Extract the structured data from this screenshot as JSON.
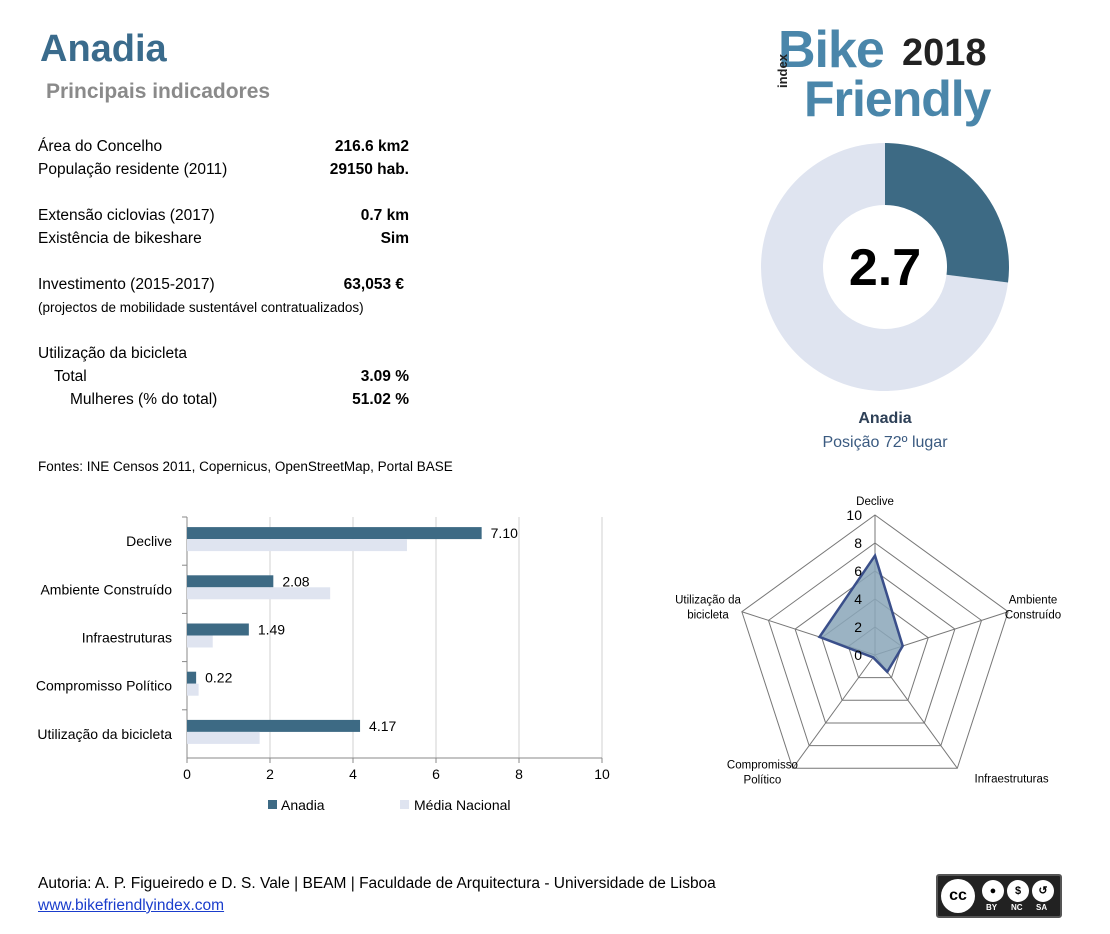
{
  "header": {
    "title": "Anadia",
    "subtitle": "Principais indicadores"
  },
  "logo": {
    "bike": "Bike",
    "year": "2018",
    "index": "index",
    "friendly": "Friendly"
  },
  "indicators": {
    "area_label": "Área do Concelho",
    "area_value": "216.6 km2",
    "pop_label": "População residente (2011)",
    "pop_value": "29150 hab.",
    "cic_label": "Extensão ciclovias (2017)",
    "cic_value": "0.7 km",
    "bikeshare_label": "Existência de bikeshare",
    "bikeshare_value": "Sim",
    "inv_label": "Investimento (2015-2017)",
    "inv_value": "63,053 €",
    "inv_note": "(projectos de mobilidade sustentável contratualizados)",
    "use_label": "Utilização da bicicleta",
    "total_label": "Total",
    "total_value": "3.09 %",
    "women_label": "Mulheres (% do total)",
    "women_value": "51.02 %"
  },
  "sources": "Fontes: INE Censos 2011, Copernicus, OpenStreetMap,  Portal BASE",
  "donut": {
    "score": "2.7",
    "name": "Anadia",
    "position": "Posição 72º lugar"
  },
  "footer": {
    "authors": "Autoria: A. P. Figueiredo e D. S. Vale | BEAM | Faculdade de Arquitectura - Universidade de Lisboa",
    "link": "www.bikefriendlyindex.com"
  },
  "license": {
    "cc": "cc",
    "by": "BY",
    "nc": "NC",
    "sa": "SA"
  },
  "colors": {
    "primary": "#3d6a84",
    "light": "#dfe4f0",
    "radar_fill": "#8aa6b8",
    "radar_line": "#3a4f8a"
  },
  "chart_data": [
    {
      "type": "pie",
      "value": 2.7,
      "max": 10,
      "label": "2.7"
    },
    {
      "type": "bar",
      "orientation": "horizontal",
      "categories": [
        "Declive",
        "Ambiente Construído",
        "Infraestruturas",
        "Compromisso Político",
        "Utilização da bicicleta"
      ],
      "series": [
        {
          "name": "Anadia",
          "values": [
            7.1,
            2.08,
            1.49,
            0.22,
            4.17
          ],
          "labels": [
            "7.10",
            "2.08",
            "1.49",
            "0.22",
            "4.17"
          ]
        },
        {
          "name": "Média Nacional",
          "values": [
            5.3,
            3.45,
            0.62,
            0.28,
            1.75
          ]
        }
      ],
      "xlim": [
        0,
        10
      ],
      "xticks": [
        "0",
        "2",
        "4",
        "6",
        "8",
        "10"
      ],
      "grid": true,
      "legend": "bottom"
    },
    {
      "type": "radar",
      "axes": [
        "Declive",
        "Ambiente Construído",
        "Infraestruturas",
        "Compromisso Político",
        "Utilização da bicicleta"
      ],
      "axis_labels": [
        [
          "Declive"
        ],
        [
          "Ambiente",
          "Construído"
        ],
        [
          "Infraestruturas"
        ],
        [
          "Compromisso",
          "Político"
        ],
        [
          "Utilização da",
          "bicicleta"
        ]
      ],
      "values": [
        7.1,
        2.08,
        1.49,
        0.22,
        4.17
      ],
      "rlim": [
        0,
        10
      ],
      "rticks": [
        "0",
        "2",
        "4",
        "6",
        "8",
        "10"
      ]
    }
  ]
}
